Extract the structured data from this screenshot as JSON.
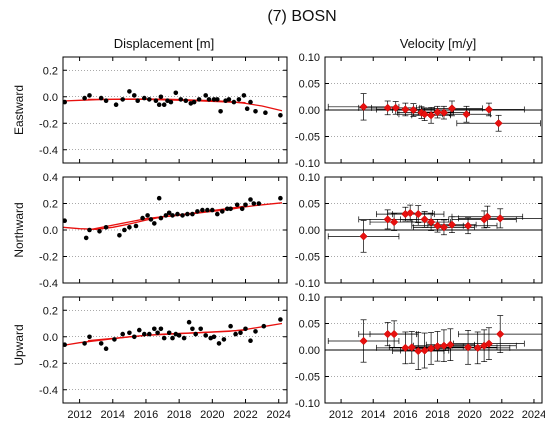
{
  "title": "(7) BOSN",
  "column_titles": [
    "Displacement [m]",
    "Velocity [m/y]"
  ],
  "row_labels": [
    "Eastward",
    "Northward",
    "Upward"
  ],
  "colors": {
    "points": "#000000",
    "fit": "#e8110f",
    "marker": "#e8110f",
    "grid": "#555555"
  },
  "chart_data": [
    {
      "type": "scatter",
      "component": "Eastward",
      "quantity": "Displacement [m]",
      "xlim": [
        2011,
        2024.5
      ],
      "ylim": [
        -0.5,
        0.3
      ],
      "xticks": [
        2012,
        2014,
        2016,
        2018,
        2020,
        2022,
        2024
      ],
      "yticks": [
        -0.4,
        -0.2,
        0.0,
        0.2
      ],
      "ytick_labels": [
        "-0.4",
        "-0.2",
        "0.0",
        "0.2"
      ],
      "grid": "dotted-horizontal",
      "points": [
        [
          2011.1,
          -0.04
        ],
        [
          2012.3,
          -0.01
        ],
        [
          2012.6,
          0.01
        ],
        [
          2013.3,
          -0.01
        ],
        [
          2013.6,
          -0.03
        ],
        [
          2014.2,
          -0.06
        ],
        [
          2014.6,
          -0.02
        ],
        [
          2015.0,
          0.04
        ],
        [
          2015.3,
          0.01
        ],
        [
          2015.5,
          -0.03
        ],
        [
          2015.9,
          -0.01
        ],
        [
          2016.2,
          -0.02
        ],
        [
          2016.6,
          -0.03
        ],
        [
          2016.8,
          -0.06
        ],
        [
          2016.9,
          0.0
        ],
        [
          2017.1,
          -0.06
        ],
        [
          2017.3,
          -0.03
        ],
        [
          2017.5,
          -0.04
        ],
        [
          2017.8,
          0.03
        ],
        [
          2018.1,
          -0.02
        ],
        [
          2018.4,
          -0.03
        ],
        [
          2018.7,
          -0.05
        ],
        [
          2018.9,
          -0.04
        ],
        [
          2019.2,
          -0.02
        ],
        [
          2019.6,
          0.01
        ],
        [
          2019.8,
          -0.02
        ],
        [
          2020.1,
          -0.02
        ],
        [
          2020.3,
          -0.02
        ],
        [
          2020.5,
          -0.11
        ],
        [
          2020.8,
          -0.03
        ],
        [
          2021.0,
          -0.02
        ],
        [
          2021.3,
          -0.04
        ],
        [
          2021.6,
          -0.02
        ],
        [
          2021.9,
          0.01
        ],
        [
          2022.1,
          -0.09
        ],
        [
          2022.3,
          -0.04
        ],
        [
          2022.6,
          -0.11
        ],
        [
          2023.2,
          -0.12
        ],
        [
          2024.1,
          -0.14
        ]
      ],
      "fits": [
        [
          [
            2011.0,
            -0.032
          ],
          [
            2012,
            -0.027
          ],
          [
            2013,
            -0.022
          ],
          [
            2014,
            -0.019
          ],
          [
            2015,
            -0.017
          ],
          [
            2016,
            -0.017
          ],
          [
            2017,
            -0.018
          ],
          [
            2018,
            -0.021
          ],
          [
            2019,
            -0.025
          ],
          [
            2020,
            -0.029
          ],
          [
            2021,
            -0.036
          ],
          [
            2022,
            -0.05
          ],
          [
            2023,
            -0.07
          ],
          [
            2024.2,
            -0.105
          ]
        ],
        [
          [
            2012.5,
            -0.02
          ],
          [
            2016,
            -0.02
          ],
          [
            2019,
            -0.03
          ],
          [
            2022,
            -0.045
          ]
        ]
      ]
    },
    {
      "type": "scatter",
      "component": "Northward",
      "quantity": "Displacement [m]",
      "xlim": [
        2011,
        2024.5
      ],
      "ylim": [
        -0.4,
        0.4
      ],
      "xticks": [
        2012,
        2014,
        2016,
        2018,
        2020,
        2022,
        2024
      ],
      "yticks": [
        -0.4,
        -0.2,
        0.0,
        0.2,
        0.4
      ],
      "ytick_labels": [
        "-0.4",
        "-0.2",
        "0.0",
        "0.2",
        "0.4"
      ],
      "grid": "dotted-horizontal",
      "points": [
        [
          2011.1,
          0.07
        ],
        [
          2012.4,
          -0.06
        ],
        [
          2012.6,
          0.0
        ],
        [
          2013.2,
          -0.01
        ],
        [
          2013.6,
          0.02
        ],
        [
          2014.4,
          -0.04
        ],
        [
          2014.7,
          0.0
        ],
        [
          2015.0,
          0.02
        ],
        [
          2015.4,
          0.03
        ],
        [
          2015.8,
          0.09
        ],
        [
          2016.1,
          0.11
        ],
        [
          2016.3,
          0.08
        ],
        [
          2016.5,
          0.05
        ],
        [
          2016.8,
          0.24
        ],
        [
          2016.9,
          0.09
        ],
        [
          2017.2,
          0.11
        ],
        [
          2017.4,
          0.13
        ],
        [
          2017.6,
          0.11
        ],
        [
          2017.9,
          0.12
        ],
        [
          2018.2,
          0.11
        ],
        [
          2018.5,
          0.12
        ],
        [
          2018.8,
          0.12
        ],
        [
          2019.1,
          0.14
        ],
        [
          2019.4,
          0.15
        ],
        [
          2019.7,
          0.15
        ],
        [
          2020.0,
          0.15
        ],
        [
          2020.3,
          0.12
        ],
        [
          2020.6,
          0.14
        ],
        [
          2020.9,
          0.16
        ],
        [
          2021.1,
          0.16
        ],
        [
          2021.5,
          0.19
        ],
        [
          2021.8,
          0.16
        ],
        [
          2022.0,
          0.19
        ],
        [
          2022.3,
          0.23
        ],
        [
          2022.5,
          0.2
        ],
        [
          2022.8,
          0.2
        ],
        [
          2024.1,
          0.24
        ]
      ],
      "fits": [
        [
          [
            2011.0,
            0.02
          ],
          [
            2012,
            0.01
          ],
          [
            2013,
            0.005
          ],
          [
            2014,
            0.02
          ],
          [
            2015,
            0.045
          ],
          [
            2016,
            0.075
          ],
          [
            2017,
            0.1
          ],
          [
            2018,
            0.11
          ],
          [
            2019,
            0.125
          ],
          [
            2020,
            0.14
          ],
          [
            2021,
            0.155
          ],
          [
            2022,
            0.175
          ],
          [
            2023,
            0.19
          ],
          [
            2024.2,
            0.205
          ]
        ],
        [
          [
            2012.5,
            0.0
          ],
          [
            2016,
            0.085
          ],
          [
            2019,
            0.13
          ],
          [
            2022,
            0.18
          ]
        ]
      ]
    },
    {
      "type": "scatter",
      "component": "Upward",
      "quantity": "Displacement [m]",
      "xlim": [
        2011,
        2024.5
      ],
      "ylim": [
        -0.5,
        0.3
      ],
      "xticks": [
        2012,
        2014,
        2016,
        2018,
        2020,
        2022,
        2024
      ],
      "xtick_labels": [
        "2012",
        "2014",
        "2016",
        "2018",
        "2020",
        "2022",
        "2024"
      ],
      "yticks": [
        -0.4,
        -0.2,
        0.0,
        0.2
      ],
      "ytick_labels": [
        "-0.4",
        "-0.2",
        "0.0",
        "0.2"
      ],
      "grid": "dotted-horizontal",
      "points": [
        [
          2011.1,
          -0.06
        ],
        [
          2012.3,
          -0.05
        ],
        [
          2012.6,
          0.0
        ],
        [
          2013.3,
          -0.05
        ],
        [
          2013.6,
          -0.09
        ],
        [
          2014.1,
          -0.02
        ],
        [
          2014.6,
          0.02
        ],
        [
          2015.0,
          0.03
        ],
        [
          2015.3,
          0.0
        ],
        [
          2015.6,
          0.05
        ],
        [
          2015.9,
          0.02
        ],
        [
          2016.2,
          0.02
        ],
        [
          2016.5,
          0.06
        ],
        [
          2016.7,
          0.03
        ],
        [
          2016.9,
          0.06
        ],
        [
          2017.1,
          -0.01
        ],
        [
          2017.4,
          0.03
        ],
        [
          2017.6,
          -0.01
        ],
        [
          2017.8,
          0.02
        ],
        [
          2018.0,
          0.01
        ],
        [
          2018.3,
          -0.01
        ],
        [
          2018.6,
          0.11
        ],
        [
          2018.8,
          0.06
        ],
        [
          2019.0,
          0.02
        ],
        [
          2019.3,
          0.06
        ],
        [
          2019.6,
          0.01
        ],
        [
          2019.9,
          -0.01
        ],
        [
          2020.1,
          0.0
        ],
        [
          2020.4,
          -0.05
        ],
        [
          2020.7,
          -0.02
        ],
        [
          2021.1,
          0.08
        ],
        [
          2021.4,
          0.02
        ],
        [
          2021.7,
          0.03
        ],
        [
          2022.0,
          0.06
        ],
        [
          2022.3,
          -0.03
        ],
        [
          2022.6,
          0.04
        ],
        [
          2023.1,
          0.08
        ],
        [
          2024.1,
          0.13
        ]
      ],
      "fits": [
        [
          [
            2011.0,
            -0.065
          ],
          [
            2012,
            -0.045
          ],
          [
            2013,
            -0.03
          ],
          [
            2014,
            -0.015
          ],
          [
            2015,
            0.0
          ],
          [
            2016,
            0.01
          ],
          [
            2017,
            0.02
          ],
          [
            2018,
            0.025
          ],
          [
            2019,
            0.03
          ],
          [
            2020,
            0.035
          ],
          [
            2021,
            0.04
          ],
          [
            2022,
            0.055
          ],
          [
            2023,
            0.075
          ],
          [
            2024.2,
            0.1
          ]
        ],
        [
          [
            2012.5,
            -0.03
          ],
          [
            2016,
            0.01
          ],
          [
            2019,
            0.03
          ],
          [
            2022,
            0.05
          ]
        ]
      ]
    },
    {
      "type": "errorbar",
      "component": "Eastward",
      "quantity": "Velocity [m/y]",
      "xlim": [
        2011,
        2024.5
      ],
      "ylim": [
        -0.1,
        0.1
      ],
      "xticks": [
        2012,
        2014,
        2016,
        2018,
        2020,
        2022,
        2024
      ],
      "yticks": [
        -0.1,
        -0.05,
        0.0,
        0.05,
        0.1
      ],
      "ytick_labels": [
        "-0.10",
        "-0.05",
        "0.00",
        "0.05",
        "0.10"
      ],
      "grid": "dotted-horizontal",
      "zero_line": true,
      "markers": [
        [
          2013.4,
          0.006
        ],
        [
          2014.9,
          0.004
        ],
        [
          2015.4,
          0.004
        ],
        [
          2016.0,
          0.001
        ],
        [
          2016.5,
          0.0
        ],
        [
          2017.0,
          -0.005
        ],
        [
          2017.2,
          -0.008
        ],
        [
          2017.6,
          -0.01
        ],
        [
          2018.0,
          -0.004
        ],
        [
          2018.4,
          -0.005
        ],
        [
          2018.9,
          0.003
        ],
        [
          2019.8,
          -0.008
        ],
        [
          2021.2,
          0.001
        ],
        [
          2021.8,
          -0.025
        ]
      ],
      "xerr": [
        2.2,
        1.8,
        1.5,
        1.8,
        1.3,
        1.5,
        1.6,
        1.2,
        1.0,
        1.6,
        1.9,
        1.5,
        2.2,
        2.6
      ],
      "yerr": [
        0.025,
        0.013,
        0.012,
        0.012,
        0.012,
        0.011,
        0.012,
        0.015,
        0.011,
        0.012,
        0.014,
        0.015,
        0.012,
        0.015
      ]
    },
    {
      "type": "errorbar",
      "component": "Northward",
      "quantity": "Velocity [m/y]",
      "xlim": [
        2011,
        2024.5
      ],
      "ylim": [
        -0.1,
        0.1
      ],
      "xticks": [
        2012,
        2014,
        2016,
        2018,
        2020,
        2022,
        2024
      ],
      "yticks": [
        -0.1,
        -0.05,
        0.0,
        0.05,
        0.1
      ],
      "ytick_labels": [
        "-0.10",
        "-0.05",
        "0.00",
        "0.05",
        "0.10"
      ],
      "grid": "dotted-horizontal",
      "zero_line": true,
      "markers": [
        [
          2013.4,
          -0.012
        ],
        [
          2014.9,
          0.02
        ],
        [
          2015.3,
          0.015
        ],
        [
          2016.0,
          0.03
        ],
        [
          2016.3,
          0.032
        ],
        [
          2016.8,
          0.03
        ],
        [
          2017.2,
          0.02
        ],
        [
          2017.6,
          0.015
        ],
        [
          2018.0,
          0.008
        ],
        [
          2018.4,
          0.005
        ],
        [
          2018.9,
          0.01
        ],
        [
          2019.9,
          0.008
        ],
        [
          2020.9,
          0.02
        ],
        [
          2021.1,
          0.025
        ],
        [
          2021.9,
          0.022
        ]
      ],
      "xerr": [
        2.2,
        1.8,
        1.5,
        1.8,
        1.4,
        1.6,
        1.5,
        1.2,
        1.6,
        1.9,
        1.5,
        1.8,
        2.0,
        2.2,
        2.6
      ],
      "yerr": [
        0.03,
        0.018,
        0.016,
        0.013,
        0.015,
        0.016,
        0.015,
        0.016,
        0.012,
        0.014,
        0.015,
        0.015,
        0.016,
        0.02,
        0.018
      ]
    },
    {
      "type": "errorbar",
      "component": "Upward",
      "quantity": "Velocity [m/y]",
      "xlim": [
        2011,
        2024.5
      ],
      "ylim": [
        -0.1,
        0.1
      ],
      "xticks": [
        2012,
        2014,
        2016,
        2018,
        2020,
        2022,
        2024
      ],
      "xtick_labels": [
        "2012",
        "2014",
        "2016",
        "2018",
        "2020",
        "2022",
        "2024"
      ],
      "yticks": [
        -0.1,
        -0.05,
        0.0,
        0.05,
        0.1
      ],
      "ytick_labels": [
        "-0.10",
        "-0.05",
        "0.00",
        "0.05",
        "0.10"
      ],
      "grid": "dotted-horizontal",
      "zero_line": true,
      "markers": [
        [
          2013.4,
          0.017
        ],
        [
          2014.9,
          0.03
        ],
        [
          2015.3,
          0.03
        ],
        [
          2016.0,
          0.004
        ],
        [
          2016.4,
          0.005
        ],
        [
          2016.8,
          -0.002
        ],
        [
          2017.2,
          -0.001
        ],
        [
          2017.6,
          0.003
        ],
        [
          2018.0,
          0.007
        ],
        [
          2018.4,
          0.008
        ],
        [
          2018.8,
          0.01
        ],
        [
          2019.9,
          0.005
        ],
        [
          2020.5,
          0.004
        ],
        [
          2020.9,
          0.008
        ],
        [
          2021.2,
          0.012
        ],
        [
          2021.9,
          0.03
        ]
      ],
      "xerr": [
        2.2,
        1.8,
        1.5,
        1.8,
        1.4,
        1.6,
        1.5,
        1.2,
        1.6,
        1.9,
        1.5,
        1.8,
        2.0,
        2.0,
        2.2,
        2.6
      ],
      "yerr": [
        0.04,
        0.022,
        0.025,
        0.03,
        0.03,
        0.035,
        0.033,
        0.03,
        0.028,
        0.03,
        0.03,
        0.032,
        0.03,
        0.03,
        0.03,
        0.035
      ]
    }
  ]
}
